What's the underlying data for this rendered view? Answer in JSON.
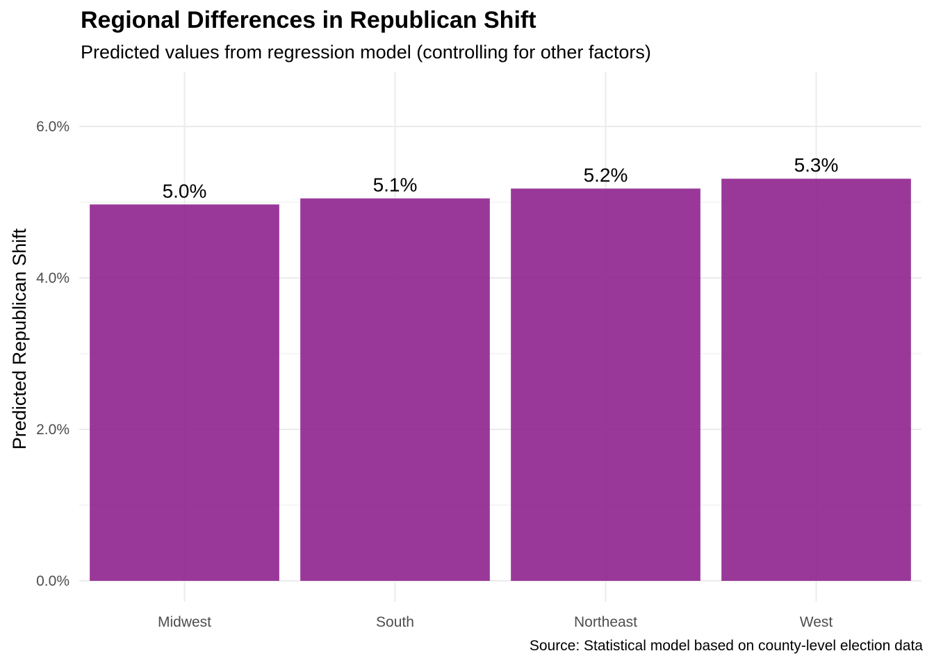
{
  "chart_data": {
    "type": "bar",
    "title": "Regional Differences in Republican Shift",
    "subtitle": "Predicted values from regression model (controlling for other factors)",
    "caption": "Source: Statistical model based on county-level election data",
    "xlabel": "",
    "ylabel": "Predicted Republican Shift",
    "categories": [
      "Midwest",
      "South",
      "Northeast",
      "West"
    ],
    "values": [
      4.97,
      5.05,
      5.18,
      5.31
    ],
    "data_labels": [
      "5.0%",
      "5.1%",
      "5.2%",
      "5.3%"
    ],
    "ylim": [
      0,
      6.6
    ],
    "yticks": [
      0,
      2,
      4,
      6
    ],
    "ytick_labels": [
      "0.0%",
      "2.0%",
      "4.0%",
      "6.0%"
    ],
    "grid": true,
    "legend": "none",
    "bar_color": "#8B1A8B",
    "grid_color": "#EBEBEB"
  }
}
